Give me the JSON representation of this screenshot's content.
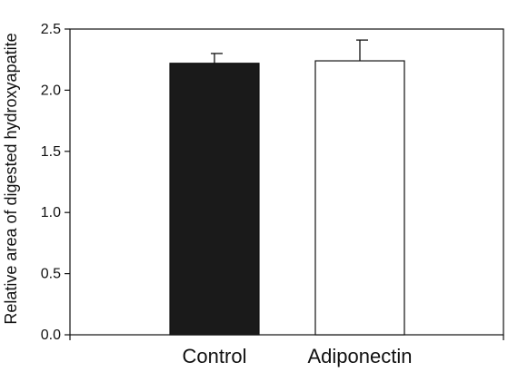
{
  "chart_data": {
    "type": "bar",
    "title": "",
    "xlabel": "",
    "ylabel": "Relative area of digested hydroxyapatite",
    "categories": [
      "Control",
      "Adiponectin"
    ],
    "values": [
      2.22,
      2.24
    ],
    "errors": [
      0.08,
      0.17
    ],
    "bar_fills": [
      "#1a1a1a",
      "#ffffff"
    ],
    "ylim": [
      0,
      2.5
    ],
    "yticks": [
      0.0,
      0.5,
      1.0,
      1.5,
      2.0,
      2.5
    ],
    "ytick_labels": [
      "0.0",
      "0.5",
      "1.0",
      "1.5",
      "2.0",
      "2.5"
    ],
    "grid": false,
    "legend": "none"
  }
}
